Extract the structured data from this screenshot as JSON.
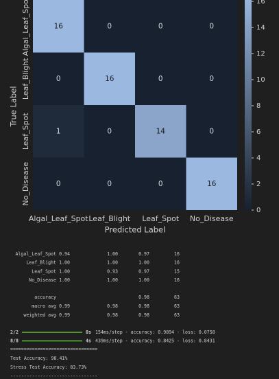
{
  "chart_data": {
    "type": "heatmap",
    "x_label": "Predicted Label",
    "y_label": "True Label",
    "x_categories": [
      "Algal_Leaf_Spot",
      "Leaf_Blight",
      "Leaf_Spot",
      "No_Disease"
    ],
    "y_categories": [
      "Algal_Leaf_Spot",
      "Leaf_Blight",
      "Leaf_Spot",
      "No_Disease"
    ],
    "values": [
      [
        16,
        0,
        0,
        0
      ],
      [
        0,
        16,
        0,
        0
      ],
      [
        1,
        0,
        14,
        0
      ],
      [
        0,
        0,
        0,
        16
      ]
    ],
    "colormap": [
      "#17212f",
      "#9bb8e0"
    ],
    "clim": [
      0,
      16
    ],
    "cticks": [
      0,
      2,
      4,
      6,
      8,
      10,
      12,
      14,
      16
    ]
  },
  "report": {
    "rows": [
      [
        "Algal_Leaf_Spot",
        "0.94",
        "1.00",
        "0.97",
        "16"
      ],
      [
        "Leaf_Blight",
        "1.00",
        "1.00",
        "1.00",
        "16"
      ],
      [
        "Leaf_Spot",
        "1.00",
        "0.93",
        "0.97",
        "15"
      ],
      [
        "No_Disease",
        "1.00",
        "1.00",
        "1.00",
        "16"
      ]
    ],
    "summary": [
      [
        "accuracy",
        "",
        "",
        "0.98",
        "63"
      ],
      [
        "macro avg",
        "0.99",
        "0.98",
        "0.98",
        "63"
      ],
      [
        "weighted avg",
        "0.99",
        "0.98",
        "0.98",
        "63"
      ]
    ]
  },
  "progress": [
    {
      "step": "2/2",
      "time": "0s",
      "rest": "154ms/step - accuracy: 0.9894 - loss: 0.0758"
    },
    {
      "step": "8/8",
      "time": "4s",
      "rest": "439ms/step - accuracy: 0.8425 - loss: 0.8431"
    }
  ],
  "log": [
    "================================",
    "Test Accuracy: 98.41%",
    "Stress Test Accuracy: 83.73%",
    "--------------------------------"
  ]
}
